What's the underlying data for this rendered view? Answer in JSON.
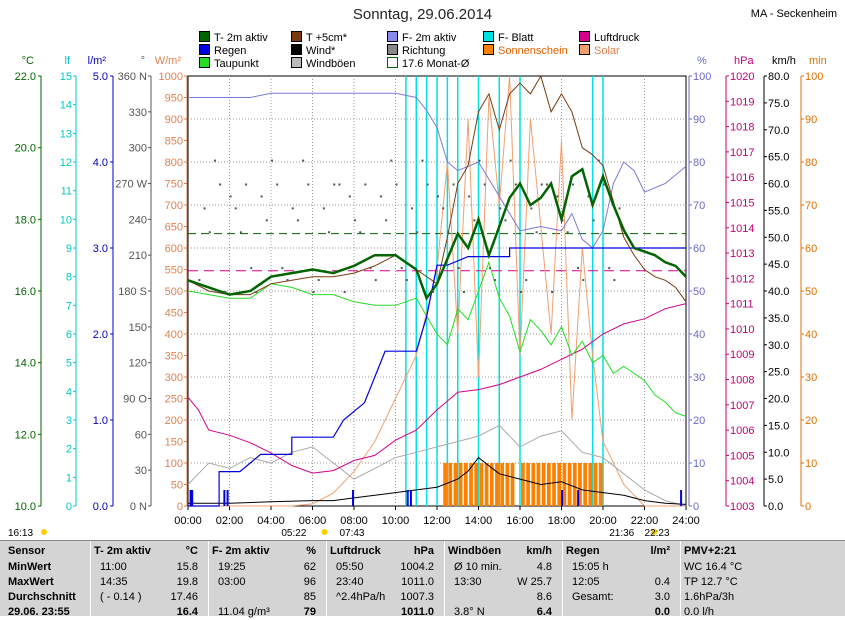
{
  "title": "Sonntag, 29.06.2014",
  "station": "MA - Seckenheim",
  "colors": {
    "temp2m": "#006400",
    "temp5cm": "#7a3a10",
    "humidity": "#7b7bd8",
    "leafwet": "#00e0e0",
    "pressure": "#d4008c",
    "rain": "#0000e0",
    "wind": "#000000",
    "winddir": "#555555",
    "sunshine": "#ff8000",
    "solar": "#f0a070",
    "dewpoint": "#22dd22",
    "gust": "#aaaaaa",
    "monthavg": "#006400"
  },
  "legend": [
    {
      "label": "T- 2m aktiv",
      "color": "#006400"
    },
    {
      "label": "T +5cm*",
      "color": "#7a3a10"
    },
    {
      "label": "F- 2m aktiv",
      "color": "#7b7bd8"
    },
    {
      "label": "F- Blatt",
      "color": "#00e0e0"
    },
    {
      "label": "Luftdruck",
      "color": "#d4008c"
    },
    {
      "label": "Regen",
      "color": "#0000e0"
    },
    {
      "label": "Wind*",
      "color": "#000000"
    },
    {
      "label": "Richtung",
      "color": "#777777"
    },
    {
      "label": "Sonnenschein",
      "color": "#ff8000"
    },
    {
      "label": "Solar",
      "color": "#f0a070"
    },
    {
      "label": "Taupunkt",
      "color": "#22dd22"
    },
    {
      "label": "Windböen",
      "color": "#aaaaaa"
    },
    {
      "label": "17.6 Monat-Ø",
      "color": "#006400"
    }
  ],
  "chart_data": {
    "type": "line",
    "x_ticks": [
      "00:00",
      "02:00",
      "04:00",
      "06:00",
      "08:00",
      "10:00",
      "12:00",
      "14:00",
      "16:00",
      "18:00",
      "20:00",
      "22:00",
      "24:00"
    ],
    "axes": {
      "temp": {
        "unit": "°C",
        "range": [
          10,
          22
        ],
        "ticks": [
          "10.0",
          "12.0",
          "14.0",
          "16.0",
          "18.0",
          "20.0",
          "22.0"
        ],
        "color": "#006400"
      },
      "leafwet": {
        "unit": "lf",
        "range": [
          0,
          15
        ],
        "ticks": [
          "0",
          "1",
          "2",
          "3",
          "4",
          "5",
          "6",
          "7",
          "8",
          "9",
          "10",
          "11",
          "12",
          "13",
          "14",
          "15"
        ],
        "color": "#00c8c8"
      },
      "rain": {
        "unit": "l/m²",
        "range": [
          0,
          5
        ],
        "ticks": [
          "0.0",
          "1.0",
          "2.0",
          "3.0",
          "4.0",
          "5.0"
        ],
        "color": "#0000c0"
      },
      "winddir": {
        "unit": "°",
        "range": [
          0,
          360
        ],
        "ticks": [
          "0 N",
          "30",
          "60",
          "90 O",
          "120",
          "150",
          "180 S",
          "210",
          "240",
          "270 W",
          "300",
          "330",
          "360 N"
        ],
        "color": "#555555"
      },
      "solar": {
        "unit": "W/m²",
        "range": [
          0,
          1000
        ],
        "ticks": [
          "0",
          "50",
          "100",
          "150",
          "200",
          "250",
          "300",
          "350",
          "400",
          "450",
          "500",
          "550",
          "600",
          "650",
          "700",
          "750",
          "800",
          "850",
          "900",
          "950",
          "1000"
        ],
        "color": "#e08050"
      },
      "humidity": {
        "unit": "%",
        "range": [
          0,
          100
        ],
        "ticks": [
          "0",
          "10",
          "20",
          "30",
          "40",
          "50",
          "60",
          "70",
          "80",
          "90",
          "100"
        ],
        "color": "#6a6ac8"
      },
      "pressure": {
        "unit": "hPa",
        "range": [
          1003,
          1020
        ],
        "ticks": [
          "1003",
          "1004",
          "1005",
          "1006",
          "1007",
          "1008",
          "1009",
          "1010",
          "1011",
          "1012",
          "1013",
          "1014",
          "1015",
          "1016",
          "1017",
          "1018",
          "1019",
          "1020"
        ],
        "color": "#c0007a"
      },
      "wind": {
        "unit": "km/h",
        "range": [
          0,
          80
        ],
        "ticks": [
          "0.0",
          "5.0",
          "10.0",
          "15.0",
          "20.0",
          "25.0",
          "30.0",
          "35.0",
          "40.0",
          "45.0",
          "50.0",
          "55.0",
          "60.0",
          "65.0",
          "70.0",
          "75.0",
          "80.0"
        ],
        "color": "#000000"
      },
      "sunmin": {
        "unit": "min",
        "range": [
          0,
          100
        ],
        "ticks": [
          "0",
          "10",
          "20",
          "30",
          "40",
          "50",
          "60",
          "70",
          "80",
          "90",
          "100"
        ],
        "color": "#e07000"
      }
    },
    "series": [
      {
        "name": "T- 2m aktiv",
        "axis": "temp",
        "x": [
          0,
          1,
          2,
          3,
          4,
          5,
          6,
          7,
          8,
          9,
          10,
          11,
          11.5,
          12,
          12.5,
          13,
          13.5,
          14,
          14.5,
          15,
          15.5,
          16,
          16.5,
          17,
          17.5,
          18,
          18.5,
          19,
          19.5,
          20,
          20.5,
          21,
          21.5,
          22,
          22.5,
          23,
          23.5,
          24
        ],
        "values": [
          16.3,
          16.1,
          15.9,
          16.0,
          16.4,
          16.5,
          16.6,
          16.5,
          16.7,
          17.0,
          17.0,
          16.6,
          15.8,
          16.2,
          16.9,
          17.6,
          17.2,
          18.0,
          17.0,
          17.8,
          18.6,
          19.0,
          18.4,
          18.6,
          19.0,
          18.0,
          19.2,
          19.4,
          18.4,
          19.2,
          18.4,
          17.7,
          17.2,
          17.1,
          17.0,
          16.8,
          16.7,
          16.4
        ]
      },
      {
        "name": "T +5cm*",
        "axis": "temp",
        "x": [
          0,
          1,
          2,
          3,
          4,
          5,
          6,
          7,
          8,
          9,
          10,
          11,
          12,
          12.5,
          13,
          13.5,
          14,
          14.5,
          15,
          15.5,
          16,
          16.5,
          17,
          17.5,
          18,
          18.5,
          19,
          19.5,
          20,
          20.5,
          21,
          21.5,
          22,
          22.5,
          23,
          23.5,
          24
        ],
        "values": [
          16.3,
          16.0,
          15.9,
          15.9,
          16.2,
          16.3,
          16.4,
          16.4,
          16.5,
          16.7,
          17.0,
          16.6,
          16.2,
          17.5,
          19.0,
          19.5,
          21.0,
          21.5,
          20.5,
          21.5,
          21.8,
          21.5,
          22.0,
          21.0,
          21.5,
          21.0,
          20.0,
          19.8,
          19.5,
          18.5,
          17.5,
          17.0,
          16.6,
          16.4,
          16.3,
          16.1,
          15.7
        ]
      },
      {
        "name": "Taupunkt",
        "axis": "temp",
        "x": [
          0,
          1,
          2,
          3,
          4,
          5,
          6,
          7,
          8,
          9,
          10,
          11,
          12,
          12.5,
          13,
          13.5,
          14,
          14.5,
          15,
          15.5,
          16,
          16.5,
          17,
          17.5,
          18,
          18.5,
          19,
          19.5,
          20,
          20.5,
          21,
          21.5,
          22,
          22.5,
          23,
          23.5,
          24
        ],
        "values": [
          16.0,
          15.9,
          15.8,
          15.8,
          16.2,
          16.1,
          15.9,
          15.9,
          15.7,
          15.6,
          15.6,
          15.8,
          14.8,
          14.5,
          15.5,
          15.2,
          16.0,
          16.8,
          15.8,
          15.3,
          14.3,
          15.2,
          14.9,
          14.5,
          15.0,
          14.2,
          14.6,
          14.0,
          14.2,
          13.7,
          13.9,
          13.7,
          13.5,
          13.1,
          12.9,
          12.6,
          12.5
        ]
      },
      {
        "name": "F- 2m aktiv",
        "axis": "humidity",
        "x": [
          0,
          1,
          2,
          3,
          4,
          5,
          6,
          7,
          8,
          9,
          10,
          11,
          11.5,
          12,
          12.5,
          13,
          14,
          15,
          16,
          17,
          18,
          18.5,
          19,
          19.5,
          20,
          20.5,
          21,
          21.5,
          22,
          23,
          24
        ],
        "values": [
          95,
          95,
          95,
          95,
          96,
          96,
          96,
          96,
          96,
          96,
          96,
          95,
          92,
          88,
          80,
          78,
          80,
          72,
          64,
          65,
          64,
          68,
          62,
          60,
          64,
          75,
          80,
          78,
          73,
          75,
          79
        ]
      },
      {
        "name": "Luftdruck",
        "axis": "pressure",
        "x": [
          0,
          0.5,
          1,
          2,
          3,
          4,
          5,
          6,
          7,
          8,
          9,
          10,
          11,
          12,
          13,
          14,
          15,
          16,
          17,
          18,
          19,
          20,
          21,
          22,
          23,
          24
        ],
        "values": [
          1007.3,
          1006.8,
          1006.0,
          1005.8,
          1005.5,
          1005.1,
          1004.6,
          1004.3,
          1004.4,
          1004.8,
          1005.0,
          1005.6,
          1006.0,
          1006.8,
          1007.5,
          1007.6,
          1007.8,
          1008.1,
          1008.4,
          1008.8,
          1009.2,
          1009.8,
          1010.2,
          1010.4,
          1010.8,
          1011.0
        ]
      },
      {
        "name": "Regen",
        "axis": "rain",
        "x": [
          0,
          1.5,
          1.5,
          2.5,
          3.5,
          5,
          5,
          7,
          7.5,
          8.5,
          9,
          9.5,
          10,
          11,
          11.5,
          12,
          12.5,
          13.5,
          15,
          15.5,
          15.5,
          24
        ],
        "values": [
          0,
          0,
          0.4,
          0.4,
          0.6,
          0.6,
          0.8,
          0.8,
          1.0,
          1.2,
          1.5,
          1.8,
          1.8,
          1.8,
          2.2,
          2.8,
          2.8,
          2.9,
          2.9,
          2.9,
          3.0,
          3.0
        ]
      },
      {
        "name": "Wind*",
        "axis": "wind",
        "x": [
          0,
          2,
          4,
          6,
          7,
          8,
          9,
          10,
          11,
          12,
          13,
          13.5,
          14,
          14.5,
          15,
          16,
          17,
          18,
          19,
          20,
          21,
          22,
          23,
          24
        ],
        "values": [
          0.5,
          0.5,
          0.8,
          1.0,
          1.0,
          1.5,
          2.0,
          2.5,
          3.0,
          3.5,
          5.0,
          6.5,
          9.0,
          7.5,
          6.0,
          5.0,
          4.0,
          4.5,
          3.0,
          2.5,
          2.0,
          1.0,
          0.5,
          0.3
        ]
      },
      {
        "name": "Windböen",
        "axis": "wind",
        "x": [
          0,
          1,
          2,
          3,
          4,
          5,
          6,
          7,
          8,
          9,
          10,
          11,
          12,
          13,
          14,
          15,
          16,
          17,
          18,
          19,
          20,
          21,
          22,
          23,
          24
        ],
        "values": [
          4,
          8,
          7,
          9,
          8,
          10,
          11,
          8,
          5,
          7,
          9,
          10,
          11,
          12,
          13,
          15,
          11,
          13,
          14,
          10,
          9,
          6,
          3,
          1,
          0
        ]
      },
      {
        "name": "Solar",
        "axis": "solar",
        "x": [
          0,
          5,
          6,
          7,
          8,
          9,
          10,
          11,
          12,
          12.5,
          13,
          13.5,
          14,
          14.5,
          15,
          15.5,
          16,
          16.5,
          17,
          17.5,
          18,
          18.5,
          19,
          19.5,
          20,
          21,
          22,
          24
        ],
        "values": [
          0,
          0,
          5,
          30,
          80,
          150,
          250,
          350,
          550,
          800,
          400,
          900,
          300,
          950,
          700,
          1000,
          350,
          900,
          650,
          400,
          850,
          200,
          600,
          350,
          150,
          50,
          0,
          0
        ]
      },
      {
        "name": "F- Blatt",
        "axis": "leafwet",
        "x": [
          10.5,
          11,
          11.5,
          12,
          12.5,
          13,
          14,
          15,
          16,
          19.5,
          20
        ],
        "values": [
          15,
          15,
          15,
          15,
          15,
          15,
          15,
          15,
          15,
          15,
          15
        ]
      }
    ],
    "monthavg": {
      "name": "17.6 Monat-Ø",
      "axis": "temp",
      "value": 17.6
    },
    "pressure_ref": 1012.3,
    "sunrise": "05:22",
    "sunset": "21:36",
    "dawn_left": "16:13",
    "twilight1": "07:43",
    "twilight2": "22:23"
  },
  "table": {
    "columns": [
      {
        "header": "Sensor",
        "rows": [
          "MinWert",
          "MaxWert",
          "Durchschnitt",
          "29.06. 23:55"
        ]
      },
      {
        "header": "T- 2m aktiv",
        "unit": "°C",
        "rows": [
          [
            "11:00",
            "15.8"
          ],
          [
            "14:35",
            "19.8"
          ],
          [
            "( - 0.14 )",
            "17.46"
          ],
          [
            "",
            "16.4"
          ]
        ]
      },
      {
        "header": "F- 2m aktiv",
        "unit": "%",
        "rows": [
          [
            "19:25",
            "62"
          ],
          [
            "03:00",
            "96"
          ],
          [
            "",
            "85"
          ],
          [
            "11.04 g/m³",
            "79"
          ]
        ]
      },
      {
        "header": "Luftdruck",
        "unit": "hPa",
        "rows": [
          [
            "05:50",
            "1004.2"
          ],
          [
            "23:40",
            "1011.0"
          ],
          [
            "^2.4hPa/h",
            "1007.3"
          ],
          [
            "",
            "1011.0"
          ]
        ]
      },
      {
        "header": "Windböen",
        "unit": "km/h",
        "rows": [
          [
            "Ø 10 min.",
            "4.8"
          ],
          [
            "13:30",
            "W 25.7"
          ],
          [
            "",
            "8.6"
          ],
          [
            "3.8° N",
            "6.4"
          ]
        ]
      },
      {
        "header": "Regen",
        "unit": "l/m²",
        "rows": [
          [
            "15:05 h",
            ""
          ],
          [
            "12:05",
            "0.4"
          ],
          [
            "Gesamt:",
            "3.0"
          ],
          [
            "",
            "0.0"
          ]
        ]
      },
      {
        "header": "PMV+2:21",
        "rows": [
          "WC 16.4 °C",
          "TP 12.7 °C",
          "1.6hPa/3h",
          "0.0 l/h"
        ]
      }
    ]
  }
}
